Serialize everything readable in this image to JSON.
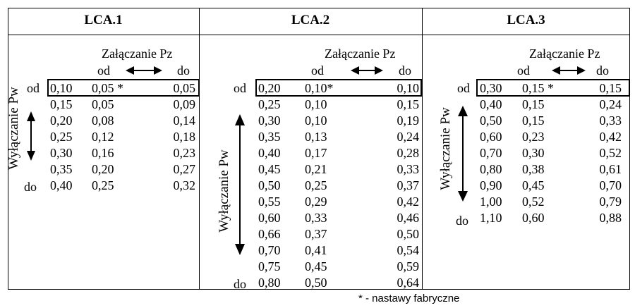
{
  "panels": [
    {
      "title": "LCA.1",
      "pz_label": "Załączanie Pz",
      "pz_from": "od",
      "pz_to": "do",
      "pw_label": "Wyłączanie Pw",
      "pw_from": "od",
      "pw_to": "do",
      "rows": [
        [
          "0,10",
          "0,05 *",
          "0,05"
        ],
        [
          "0,15",
          "0,05",
          "0,09"
        ],
        [
          "0,20",
          "0,08",
          "0,14"
        ],
        [
          "0,25",
          "0,12",
          "0,18"
        ],
        [
          "0,30",
          "0,16",
          "0,23"
        ],
        [
          "0,35",
          "0,20",
          "0,27"
        ],
        [
          "0,40",
          "0,25",
          "0,32"
        ]
      ]
    },
    {
      "title": "LCA.2",
      "pz_label": "Załączanie Pz",
      "pz_from": "od",
      "pz_to": "do",
      "pw_label": "Wyłączanie Pw",
      "pw_from": "od",
      "pw_to": "do",
      "rows": [
        [
          "0,20",
          "0,10*",
          "0,10"
        ],
        [
          "0,25",
          "0,10",
          "0,15"
        ],
        [
          "0,30",
          "0,10",
          "0,19"
        ],
        [
          "0,35",
          "0,13",
          "0,24"
        ],
        [
          "0,40",
          "0,17",
          "0,28"
        ],
        [
          "0,45",
          "0,21",
          "0,33"
        ],
        [
          "0,50",
          "0,25",
          "0,37"
        ],
        [
          "0,55",
          "0,29",
          "0,42"
        ],
        [
          "0,60",
          "0,33",
          "0,46"
        ],
        [
          "0,66",
          "0,37",
          "0,50"
        ],
        [
          "0,70",
          "0,41",
          "0,54"
        ],
        [
          "0,75",
          "0,45",
          "0,59"
        ],
        [
          "0,80",
          "0,50",
          "0,64"
        ]
      ]
    },
    {
      "title": "LCA.3",
      "pz_label": "Załączanie Pz",
      "pz_from": "od",
      "pz_to": "do",
      "pw_label": "Wyłączanie Pw",
      "pw_from": "od",
      "pw_to": "do",
      "rows": [
        [
          "0,30",
          "0,15 *",
          "0,15"
        ],
        [
          "0,40",
          "0,15",
          "0,24"
        ],
        [
          "0,50",
          "0,15",
          "0,33"
        ],
        [
          "0,60",
          "0,23",
          "0,42"
        ],
        [
          "0,70",
          "0,30",
          "0,52"
        ],
        [
          "0,80",
          "0,38",
          "0,61"
        ],
        [
          "0,90",
          "0,45",
          "0,70"
        ],
        [
          "1,00",
          "0,52",
          "0,79"
        ],
        [
          "1,10",
          "0,60",
          "0,88"
        ]
      ]
    }
  ],
  "footnote": "* - nastawy fabryczne"
}
